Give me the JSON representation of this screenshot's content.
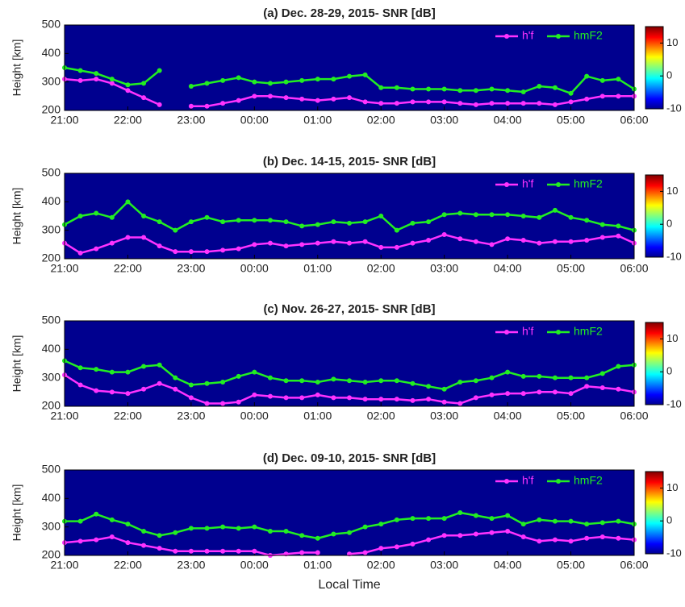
{
  "chart_data": [
    {
      "type": "line",
      "title": "(a) Dec. 28-29, 2015- SNR [dB]",
      "y_label": "Height [km]",
      "x": [
        "21:00",
        "21:15",
        "21:30",
        "21:45",
        "22:00",
        "22:15",
        "22:30",
        "22:45",
        "23:00",
        "23:15",
        "23:30",
        "23:45",
        "00:00",
        "00:15",
        "00:30",
        "00:45",
        "01:00",
        "01:15",
        "01:30",
        "01:45",
        "02:00",
        "02:15",
        "02:30",
        "02:45",
        "03:00",
        "03:15",
        "03:30",
        "03:45",
        "04:00",
        "04:15",
        "04:30",
        "04:45",
        "05:00",
        "05:15",
        "05:30",
        "05:45",
        "06:00"
      ],
      "xlim": [
        "21:00",
        "06:00"
      ],
      "xticks": [
        "21:00",
        "22:00",
        "23:00",
        "00:00",
        "01:00",
        "02:00",
        "03:00",
        "04:00",
        "05:00",
        "06:00"
      ],
      "ylim": [
        200,
        500
      ],
      "yticks": [
        200,
        300,
        400,
        500
      ],
      "legend": "upper right",
      "background": "#00008f",
      "colorbar": {
        "lim": [
          -10,
          15
        ],
        "ticks": [
          -10,
          0,
          10
        ]
      },
      "series": [
        {
          "name": "h'f",
          "color": "#ff33ff",
          "values": [
            310,
            305,
            310,
            295,
            270,
            245,
            220,
            null,
            215,
            215,
            225,
            235,
            250,
            250,
            245,
            240,
            235,
            240,
            245,
            230,
            225,
            225,
            230,
            230,
            230,
            225,
            220,
            225,
            225,
            225,
            225,
            220,
            230,
            240,
            250,
            250,
            250
          ]
        },
        {
          "name": "hmF2",
          "color": "#22ee22",
          "values": [
            350,
            340,
            330,
            310,
            290,
            295,
            340,
            null,
            285,
            295,
            305,
            315,
            300,
            295,
            300,
            305,
            310,
            310,
            320,
            325,
            280,
            280,
            275,
            275,
            275,
            270,
            270,
            275,
            270,
            265,
            285,
            280,
            260,
            320,
            305,
            310,
            275
          ]
        }
      ]
    },
    {
      "type": "line",
      "title": "(b) Dec. 14-15, 2015- SNR [dB]",
      "y_label": "Height [km]",
      "x": [
        "21:00",
        "21:15",
        "21:30",
        "21:45",
        "22:00",
        "22:15",
        "22:30",
        "22:45",
        "23:00",
        "23:15",
        "23:30",
        "23:45",
        "00:00",
        "00:15",
        "00:30",
        "00:45",
        "01:00",
        "01:15",
        "01:30",
        "01:45",
        "02:00",
        "02:15",
        "02:30",
        "02:45",
        "03:00",
        "03:15",
        "03:30",
        "03:45",
        "04:00",
        "04:15",
        "04:30",
        "04:45",
        "05:00",
        "05:15",
        "05:30",
        "05:45",
        "06:00"
      ],
      "xlim": [
        "21:00",
        "06:00"
      ],
      "xticks": [
        "21:00",
        "22:00",
        "23:00",
        "00:00",
        "01:00",
        "02:00",
        "03:00",
        "04:00",
        "05:00",
        "06:00"
      ],
      "ylim": [
        200,
        500
      ],
      "yticks": [
        200,
        300,
        400,
        500
      ],
      "legend": "upper right",
      "background": "#00008f",
      "colorbar": {
        "lim": [
          -10,
          15
        ],
        "ticks": [
          -10,
          0,
          10
        ]
      },
      "series": [
        {
          "name": "h'f",
          "color": "#ff33ff",
          "values": [
            255,
            220,
            235,
            255,
            275,
            275,
            245,
            225,
            225,
            225,
            230,
            235,
            250,
            255,
            245,
            250,
            255,
            260,
            255,
            260,
            240,
            240,
            255,
            265,
            285,
            270,
            260,
            250,
            270,
            265,
            255,
            260,
            260,
            265,
            275,
            280,
            255
          ]
        },
        {
          "name": "hmF2",
          "color": "#22ee22",
          "values": [
            320,
            350,
            360,
            345,
            400,
            350,
            330,
            300,
            330,
            345,
            330,
            335,
            335,
            335,
            330,
            315,
            320,
            330,
            325,
            330,
            350,
            300,
            325,
            330,
            355,
            360,
            355,
            355,
            355,
            350,
            345,
            370,
            345,
            335,
            320,
            315,
            300
          ]
        }
      ]
    },
    {
      "type": "line",
      "title": "(c) Nov. 26-27, 2015- SNR [dB]",
      "y_label": "Height [km]",
      "x": [
        "21:00",
        "21:15",
        "21:30",
        "21:45",
        "22:00",
        "22:15",
        "22:30",
        "22:45",
        "23:00",
        "23:15",
        "23:30",
        "23:45",
        "00:00",
        "00:15",
        "00:30",
        "00:45",
        "01:00",
        "01:15",
        "01:30",
        "01:45",
        "02:00",
        "02:15",
        "02:30",
        "02:45",
        "03:00",
        "03:15",
        "03:30",
        "03:45",
        "04:00",
        "04:15",
        "04:30",
        "04:45",
        "05:00",
        "05:15",
        "05:30",
        "05:45",
        "06:00"
      ],
      "xlim": [
        "21:00",
        "06:00"
      ],
      "xticks": [
        "21:00",
        "22:00",
        "23:00",
        "00:00",
        "01:00",
        "02:00",
        "03:00",
        "04:00",
        "05:00",
        "06:00"
      ],
      "ylim": [
        200,
        500
      ],
      "yticks": [
        200,
        300,
        400,
        500
      ],
      "legend": "upper right",
      "background": "#00008f",
      "colorbar": {
        "lim": [
          -10,
          15
        ],
        "ticks": [
          -10,
          0,
          10
        ]
      },
      "series": [
        {
          "name": "h'f",
          "color": "#ff33ff",
          "values": [
            310,
            275,
            255,
            250,
            245,
            260,
            280,
            260,
            230,
            210,
            210,
            215,
            240,
            235,
            230,
            230,
            240,
            230,
            230,
            225,
            225,
            225,
            220,
            225,
            215,
            210,
            230,
            240,
            245,
            245,
            250,
            250,
            245,
            270,
            265,
            260,
            250
          ]
        },
        {
          "name": "hmF2",
          "color": "#22ee22",
          "values": [
            360,
            335,
            330,
            320,
            320,
            340,
            345,
            300,
            275,
            280,
            285,
            305,
            320,
            300,
            290,
            290,
            285,
            295,
            290,
            285,
            290,
            290,
            280,
            270,
            260,
            285,
            290,
            300,
            320,
            305,
            305,
            300,
            300,
            300,
            315,
            340,
            345
          ]
        }
      ]
    },
    {
      "type": "line",
      "title": "(d) Dec. 09-10, 2015- SNR [dB]",
      "y_label": "Height [km]",
      "x_label": "Local Time",
      "x": [
        "21:00",
        "21:15",
        "21:30",
        "21:45",
        "22:00",
        "22:15",
        "22:30",
        "22:45",
        "23:00",
        "23:15",
        "23:30",
        "23:45",
        "00:00",
        "00:15",
        "00:30",
        "00:45",
        "01:00",
        "01:15",
        "01:30",
        "01:45",
        "02:00",
        "02:15",
        "02:30",
        "02:45",
        "03:00",
        "03:15",
        "03:30",
        "03:45",
        "04:00",
        "04:15",
        "04:30",
        "04:45",
        "05:00",
        "05:15",
        "05:30",
        "05:45",
        "06:00"
      ],
      "xlim": [
        "21:00",
        "06:00"
      ],
      "xticks": [
        "21:00",
        "22:00",
        "23:00",
        "00:00",
        "01:00",
        "02:00",
        "03:00",
        "04:00",
        "05:00",
        "06:00"
      ],
      "ylim": [
        200,
        500
      ],
      "yticks": [
        200,
        300,
        400,
        500
      ],
      "legend": "upper right",
      "background": "#00008f",
      "colorbar": {
        "lim": [
          -10,
          15
        ],
        "ticks": [
          -10,
          0,
          10
        ]
      },
      "series": [
        {
          "name": "h'f",
          "color": "#ff33ff",
          "values": [
            245,
            250,
            255,
            265,
            245,
            235,
            225,
            215,
            215,
            215,
            215,
            215,
            215,
            200,
            205,
            210,
            210,
            null,
            205,
            210,
            225,
            230,
            240,
            255,
            270,
            270,
            275,
            280,
            285,
            265,
            250,
            255,
            250,
            260,
            265,
            260,
            255
          ]
        },
        {
          "name": "hmF2",
          "color": "#22ee22",
          "values": [
            320,
            320,
            345,
            325,
            310,
            285,
            270,
            280,
            295,
            295,
            300,
            295,
            300,
            285,
            285,
            270,
            260,
            275,
            280,
            300,
            310,
            325,
            330,
            330,
            330,
            350,
            340,
            330,
            340,
            310,
            325,
            320,
            320,
            310,
            315,
            320,
            310
          ]
        }
      ]
    }
  ]
}
